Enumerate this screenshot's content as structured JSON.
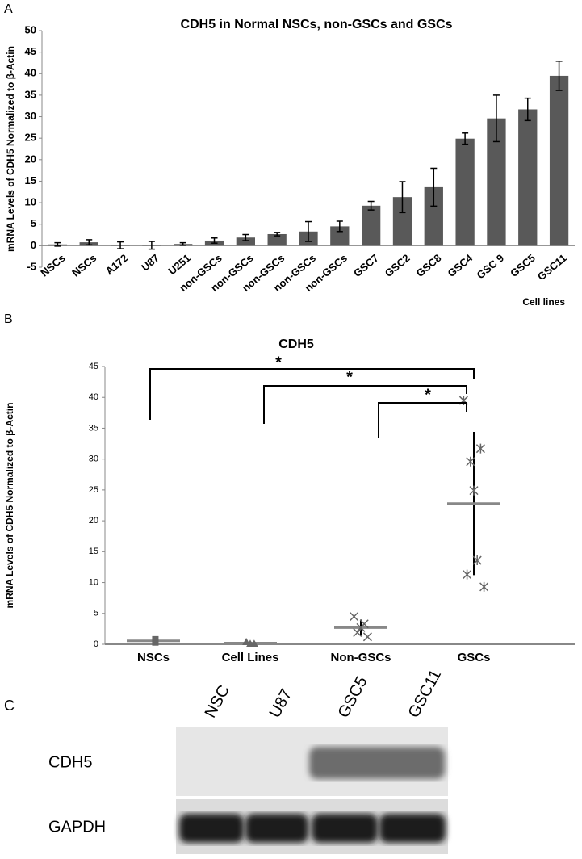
{
  "chart_data": [
    {
      "type": "bar",
      "panel_label": "A",
      "title": "CDH5 in Normal NSCs, non-GSCs and GSCs",
      "y_label": "mRNA Levels of CDH5 Normalized to β-Actin",
      "x_label": "Cell lines",
      "categories": [
        "NSCs",
        "NSCs",
        "A172",
        "U87",
        "U251",
        "non-GSCs",
        "non-GSCs",
        "non-GSCs",
        "non-GSCs",
        "non-GSCs",
        "GSC7",
        "GSC2",
        "GSC8",
        "GSC4",
        "GSC 9",
        "GSC5",
        "GSC11"
      ],
      "values": [
        0.3,
        0.8,
        0.1,
        0.1,
        0.4,
        1.2,
        1.9,
        2.7,
        3.3,
        4.5,
        9.3,
        11.3,
        13.6,
        24.9,
        29.6,
        31.7,
        39.5
      ],
      "errors": [
        0.4,
        0.6,
        0.8,
        0.9,
        0.3,
        0.6,
        0.7,
        0.4,
        2.3,
        1.2,
        1.0,
        3.6,
        4.4,
        1.3,
        5.4,
        2.6,
        3.4
      ],
      "color": "#595959",
      "ylim": [
        -5,
        50
      ],
      "yticks": [
        -5,
        0,
        5,
        10,
        15,
        20,
        25,
        30,
        35,
        40,
        45,
        50
      ]
    },
    {
      "type": "dot",
      "panel_label": "B",
      "title": "CDH5",
      "y_label": "mRNA Levels of CDH5 Normalized to β-Actin",
      "categories": [
        "NSCs",
        "Cell Lines",
        "Non-GSCs",
        "GSCs"
      ],
      "groups": [
        [
          0.3,
          0.8
        ],
        [
          0.1,
          0.1,
          0.4
        ],
        [
          1.2,
          1.9,
          2.7,
          3.3,
          4.5
        ],
        [
          9.3,
          11.3,
          13.6,
          24.9,
          29.6,
          31.7,
          39.5
        ]
      ],
      "means": [
        0.55,
        0.2,
        2.7,
        22.8
      ],
      "sd": [
        0.3,
        0.2,
        1.3,
        11.6
      ],
      "markers": [
        "square",
        "triangle",
        "x",
        "star"
      ],
      "color": "#666666",
      "mean_color": "#888888",
      "significance": [
        "*",
        "*",
        "*"
      ],
      "ylim": [
        0,
        45
      ],
      "yticks": [
        0,
        5,
        10,
        15,
        20,
        25,
        30,
        35,
        40,
        45
      ]
    }
  ],
  "blot": {
    "panel_label": "C",
    "lanes": [
      "NSC",
      "U87",
      "GSC5",
      "GSC11"
    ],
    "rows": [
      "CDH5",
      "GAPDH"
    ]
  }
}
